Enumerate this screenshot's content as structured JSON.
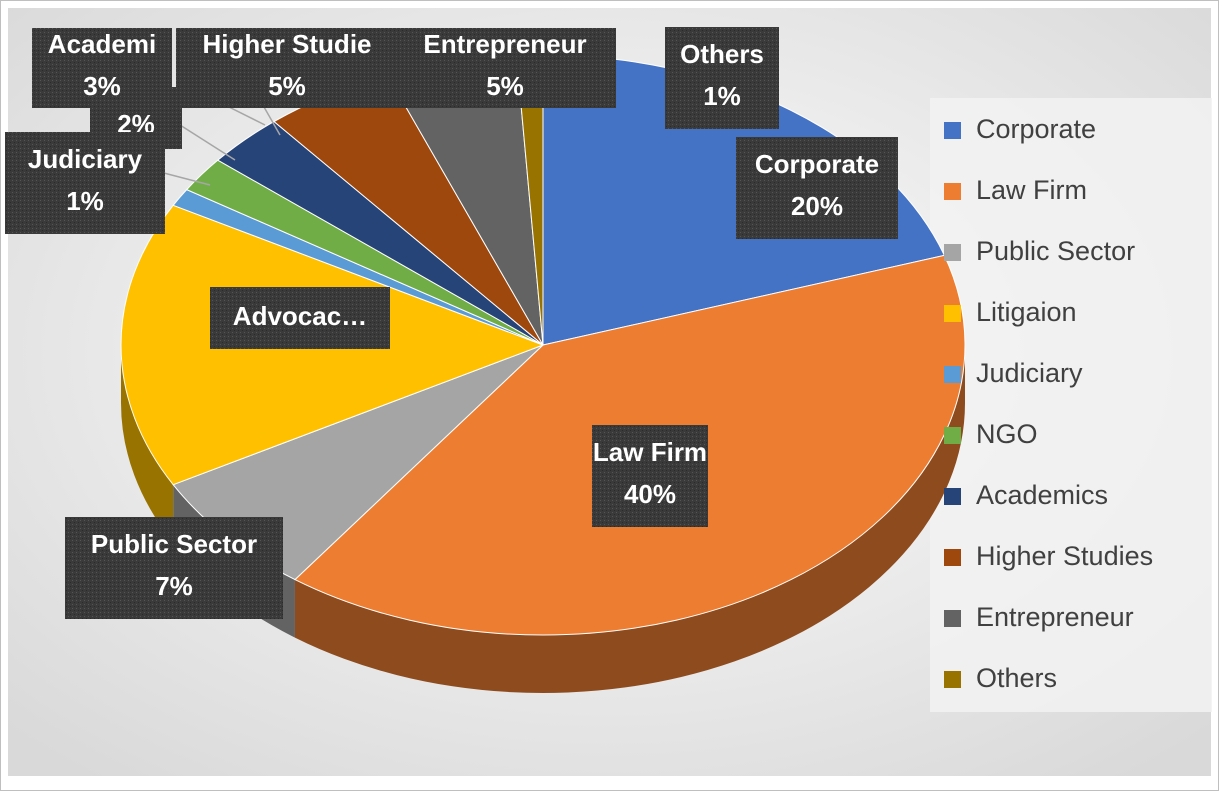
{
  "chart_data": {
    "type": "pie3d",
    "categories": [
      "Corporate",
      "Law Firm",
      "Public Sector",
      "Litigaion",
      "Judiciary",
      "NGO",
      "Academics",
      "Higher Studies",
      "Entrepreneur",
      "Others"
    ],
    "values": [
      20,
      40,
      7,
      16,
      1,
      2,
      3,
      5,
      5,
      1
    ],
    "colors": [
      "#4472c4",
      "#ed7d31",
      "#a5a5a5",
      "#ffc000",
      "#5b9bd5",
      "#70ad47",
      "#264478",
      "#9e480e",
      "#636363",
      "#997300"
    ],
    "label_names": [
      "Corporate",
      "Law Firm",
      "Public Sector",
      "Advocac…",
      "Judiciary",
      null,
      "Academi",
      "Higher Studie",
      "Entrepreneur",
      "Others"
    ],
    "value_labels": [
      "20%",
      "40%",
      "7%",
      null,
      "1%",
      "2%",
      "3%",
      "5%",
      "5%",
      "1%"
    ],
    "legend": "right"
  }
}
